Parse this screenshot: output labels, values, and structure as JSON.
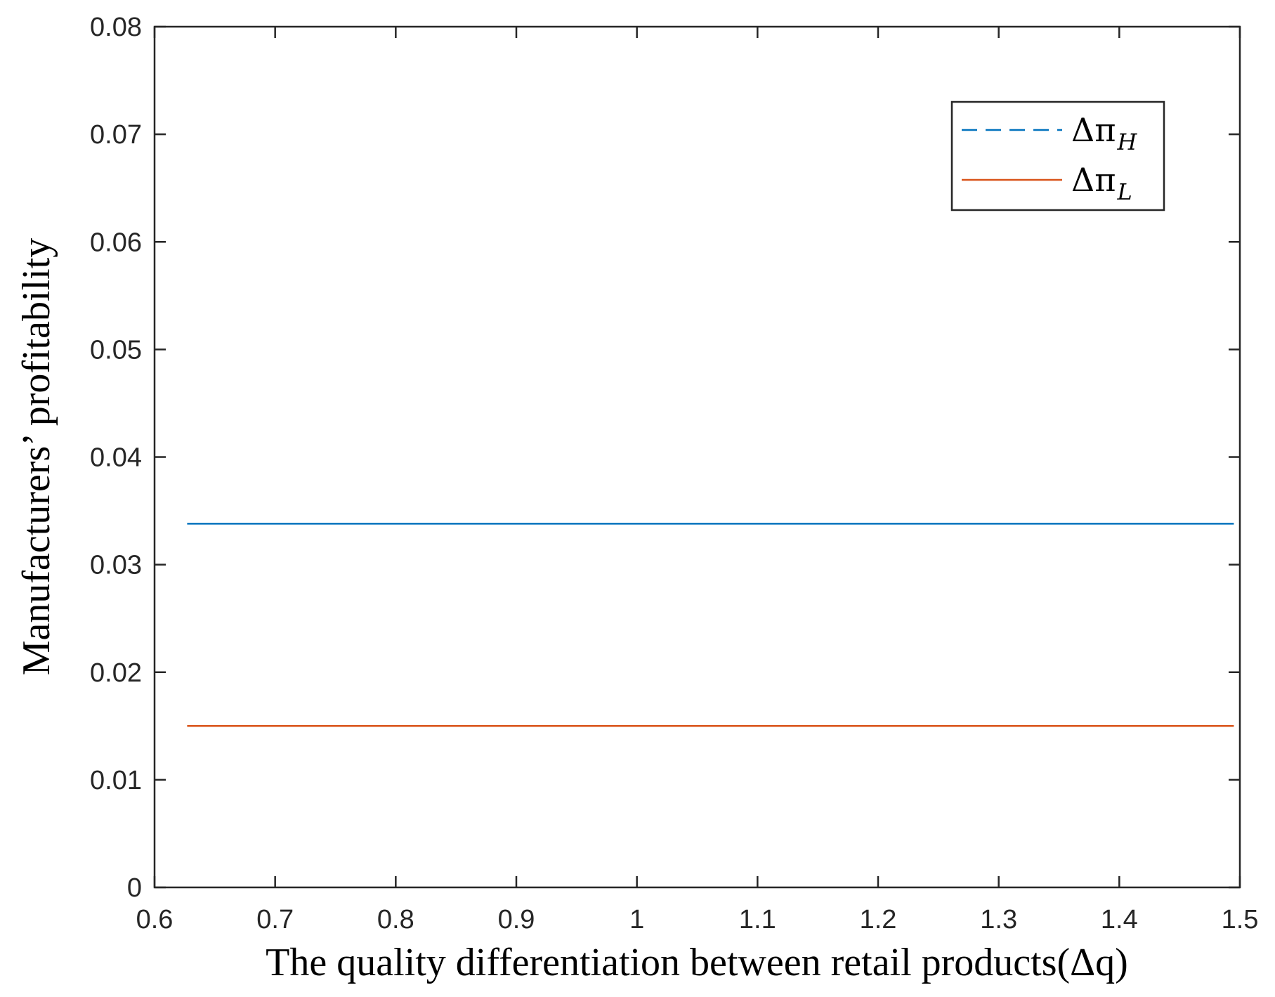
{
  "chart_data": {
    "type": "line",
    "title": "",
    "xlabel": "The quality differentiation between retail products(Δq)",
    "ylabel": "Manufacturers’ profitability",
    "xlim": [
      0.6,
      1.5
    ],
    "ylim": [
      0,
      0.08
    ],
    "xticks": [
      "0.6",
      "0.7",
      "0.8",
      "0.9",
      "1",
      "1.1",
      "1.2",
      "1.3",
      "1.4",
      "1.5"
    ],
    "yticks": [
      "0",
      "0.01",
      "0.02",
      "0.03",
      "0.04",
      "0.05",
      "0.06",
      "0.07",
      "0.08"
    ],
    "grid": false,
    "legend_position": "top-right",
    "series": [
      {
        "name": "ΔπH",
        "label_main": "Δπ",
        "label_sub": "H",
        "color": "#0072BD",
        "legend_style": "dashed",
        "x": [
          0.627,
          1.495
        ],
        "y": [
          0.0338,
          0.0338
        ]
      },
      {
        "name": "ΔπL",
        "label_main": "Δπ",
        "label_sub": "L",
        "color": "#D95319",
        "legend_style": "solid",
        "x": [
          0.627,
          1.495
        ],
        "y": [
          0.015,
          0.015
        ]
      }
    ]
  }
}
